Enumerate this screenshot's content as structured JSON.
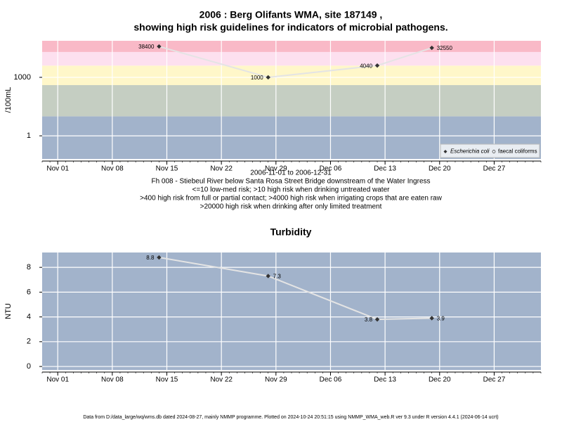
{
  "chart_data": [
    {
      "type": "line",
      "title": "2006 : Berg Olifants WMA, site 187149 ,",
      "subtitle": "showing high risk guidelines for indicators of microbial pathogens.",
      "y_label": "/100mL",
      "log": true,
      "grid": true,
      "legend": "bottom-right",
      "x": [
        "2006-11-14",
        "2006-11-28",
        "2006-12-12",
        "2006-12-19"
      ],
      "series": [
        {
          "name": "Escherichia coli",
          "color": "#333333",
          "values": [
            38400,
            1000,
            4040,
            32550
          ]
        },
        {
          "name": "faecal coliforms",
          "color": "#333333",
          "values": [
            null,
            null,
            null,
            null
          ]
        }
      ],
      "xlim": [
        "2006-10-30",
        "2007-01-02"
      ],
      "xticks": [
        {
          "value": "2006-11-01",
          "label": "Nov 01"
        },
        {
          "value": "2006-11-08",
          "label": "Nov 08"
        },
        {
          "value": "2006-11-15",
          "label": "Nov 15"
        },
        {
          "value": "2006-11-22",
          "label": "Nov 22"
        },
        {
          "value": "2006-11-29",
          "label": "Nov 29"
        },
        {
          "value": "2006-12-06",
          "label": "Dec 06"
        },
        {
          "value": "2006-12-13",
          "label": "Dec 13"
        },
        {
          "value": "2006-12-20",
          "label": "Dec 20"
        },
        {
          "value": "2006-12-27",
          "label": "Dec 27"
        }
      ],
      "ylim": [
        0.065,
        75000
      ],
      "yticks": [
        1,
        1000
      ],
      "thresholds": [
        10,
        400,
        4000,
        20000
      ],
      "band_colors": [
        "#a2b3cb",
        "#c5cec2",
        "#fff7c9",
        "#fde0ef",
        "#f9b9c7"
      ],
      "notes": [
        "2006-11-01 to 2006-12-31",
        "Fh 008 - Stiebeul River below Santa Rosa Street Bridge downstream of the Water Ingress",
        "<=10 low-med risk; >10 high risk when drinking untreated water",
        ">400 high risk from full or partial contact; >4000 high risk when irrigating crops that are eaten raw",
        ">20000 high risk when drinking after only limited treatment"
      ]
    },
    {
      "type": "line",
      "title": "Turbidity",
      "y_label": "NTU",
      "grid": true,
      "background": "#a2b3cb",
      "x": [
        "2006-11-14",
        "2006-11-28",
        "2006-12-12",
        "2006-12-19"
      ],
      "series": [
        {
          "name": "Turbidity",
          "color": "#333333",
          "values": [
            8.8,
            7.3,
            3.8,
            3.9
          ]
        }
      ],
      "xlim": [
        "2006-10-30",
        "2007-01-02"
      ],
      "xticks": [
        {
          "value": "2006-11-01",
          "label": "Nov 01"
        },
        {
          "value": "2006-11-08",
          "label": "Nov 08"
        },
        {
          "value": "2006-11-15",
          "label": "Nov 15"
        },
        {
          "value": "2006-11-22",
          "label": "Nov 22"
        },
        {
          "value": "2006-11-29",
          "label": "Nov 29"
        },
        {
          "value": "2006-12-06",
          "label": "Dec 06"
        },
        {
          "value": "2006-12-13",
          "label": "Dec 13"
        },
        {
          "value": "2006-12-20",
          "label": "Dec 20"
        },
        {
          "value": "2006-12-27",
          "label": "Dec 27"
        }
      ],
      "ylim": [
        -0.28,
        9.2
      ],
      "yticks": [
        0,
        2,
        4,
        6,
        8
      ]
    }
  ],
  "footer": "Data from D:/data_large/wq/wms.db dated 2024-08-27, mainly NMMP programme. Plotted on 2024-10-24 20:51:15 using NMMP_WMA_web.R ver 9.3 under R version 4.4.1 (2024-06-14 ucrt)"
}
